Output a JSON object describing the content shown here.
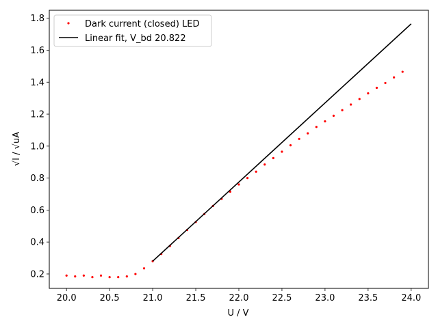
{
  "chart_data": {
    "type": "scatter",
    "xlabel": "U / V",
    "ylabel": "√I / √uA",
    "xlim": [
      19.8,
      24.2
    ],
    "ylim": [
      0.11,
      1.85
    ],
    "x_ticks": [
      "20.0",
      "20.5",
      "21.0",
      "21.5",
      "22.0",
      "22.5",
      "23.0",
      "23.5",
      "24.0"
    ],
    "y_ticks": [
      "0.2",
      "0.4",
      "0.6",
      "0.8",
      "1.0",
      "1.2",
      "1.4",
      "1.6",
      "1.8"
    ],
    "grid": false,
    "legend_position": "top-left",
    "series": [
      {
        "name": "Dark current (closed) LED",
        "kind": "scatter",
        "color": "#ff0000",
        "x": [
          20.0,
          20.1,
          20.2,
          20.3,
          20.4,
          20.5,
          20.6,
          20.7,
          20.8,
          20.9,
          21.0,
          21.1,
          21.2,
          21.3,
          21.4,
          21.5,
          21.6,
          21.7,
          21.8,
          21.9,
          22.0,
          22.1,
          22.2,
          22.3,
          22.4,
          22.5,
          22.6,
          22.7,
          22.8,
          22.9,
          23.0,
          23.1,
          23.2,
          23.3,
          23.4,
          23.5,
          23.6,
          23.7,
          23.8,
          23.9
        ],
        "y": [
          0.19,
          0.185,
          0.19,
          0.18,
          0.19,
          0.18,
          0.18,
          0.185,
          0.2,
          0.235,
          0.28,
          0.325,
          0.375,
          0.425,
          0.475,
          0.525,
          0.575,
          0.625,
          0.67,
          0.715,
          0.76,
          0.8,
          0.84,
          0.885,
          0.925,
          0.965,
          1.005,
          1.045,
          1.08,
          1.12,
          1.155,
          1.19,
          1.225,
          1.26,
          1.295,
          1.33,
          1.365,
          1.395,
          1.43,
          1.465
        ]
      },
      {
        "name": "Linear fit, V_bd 20.822",
        "kind": "line",
        "color": "#000000",
        "x": [
          21.0,
          24.0
        ],
        "y": [
          0.28,
          1.765
        ]
      }
    ]
  }
}
